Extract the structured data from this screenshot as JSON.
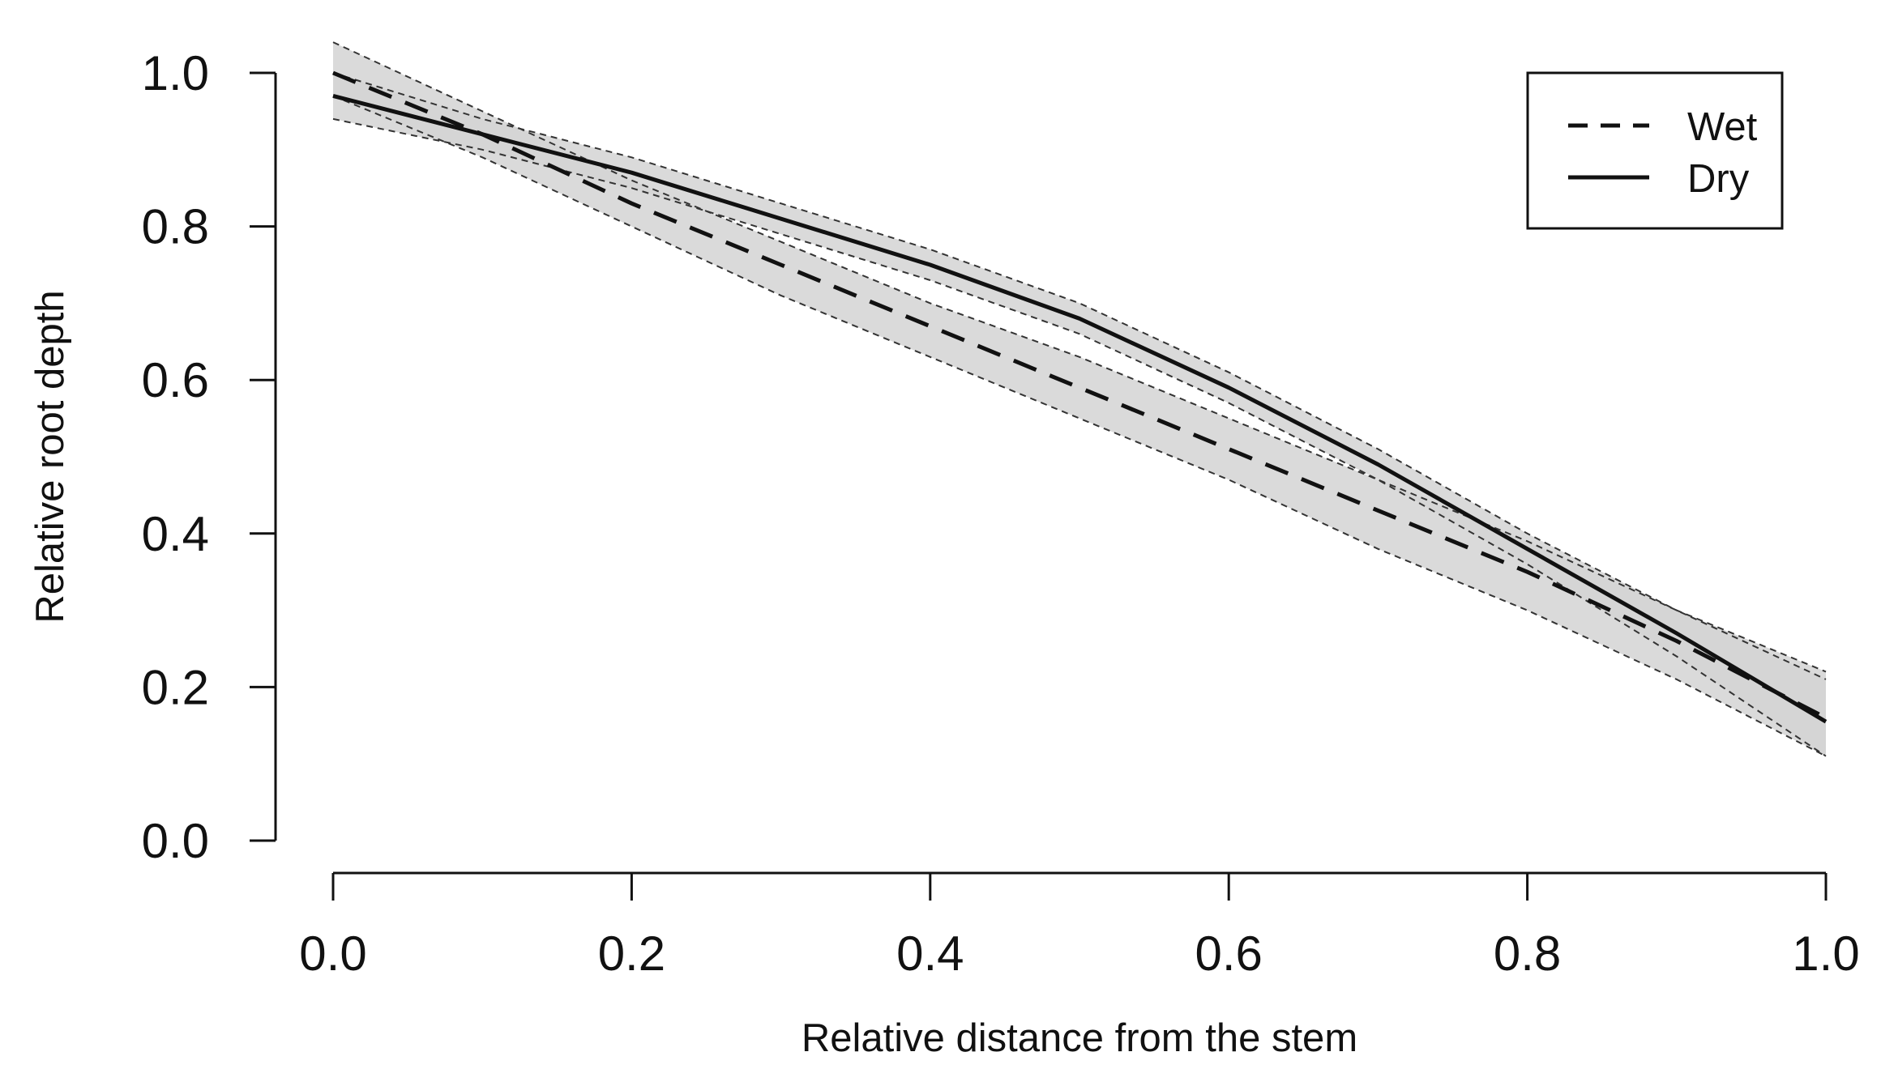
{
  "chart_data": {
    "type": "line",
    "title": "",
    "xlabel": "Relative distance from the stem",
    "ylabel": "Relative root depth",
    "xlim": [
      0,
      1
    ],
    "ylim": [
      0,
      1
    ],
    "x_ticks": [
      "0.0",
      "0.2",
      "0.4",
      "0.6",
      "0.8",
      "1.0"
    ],
    "y_ticks": [
      "0.0",
      "0.2",
      "0.4",
      "0.6",
      "0.8",
      "1.0"
    ],
    "grid": false,
    "legend_position": "top-right",
    "confidence_band": true,
    "x": [
      0.0,
      0.1,
      0.2,
      0.3,
      0.4,
      0.5,
      0.6,
      0.7,
      0.8,
      0.9,
      1.0
    ],
    "series": [
      {
        "name": "Wet",
        "line_style": "dashed",
        "values": [
          1.0,
          0.92,
          0.83,
          0.75,
          0.67,
          0.59,
          0.51,
          0.43,
          0.35,
          0.26,
          0.16
        ],
        "lower": [
          0.97,
          0.89,
          0.8,
          0.71,
          0.63,
          0.55,
          0.47,
          0.38,
          0.3,
          0.21,
          0.11
        ],
        "upper": [
          1.04,
          0.95,
          0.86,
          0.78,
          0.7,
          0.63,
          0.55,
          0.47,
          0.39,
          0.3,
          0.21
        ]
      },
      {
        "name": "Dry",
        "line_style": "solid",
        "values": [
          0.97,
          0.92,
          0.87,
          0.81,
          0.75,
          0.68,
          0.59,
          0.49,
          0.38,
          0.27,
          0.155
        ],
        "lower": [
          0.94,
          0.9,
          0.85,
          0.79,
          0.73,
          0.66,
          0.57,
          0.47,
          0.36,
          0.24,
          0.11
        ],
        "upper": [
          1.0,
          0.94,
          0.89,
          0.83,
          0.77,
          0.7,
          0.61,
          0.51,
          0.4,
          0.3,
          0.22
        ]
      }
    ]
  },
  "colors": {
    "axis": "#111111",
    "line": "#111111",
    "band_fill": "#d3d3d3",
    "band_edge": "#333333",
    "background": "#ffffff"
  }
}
